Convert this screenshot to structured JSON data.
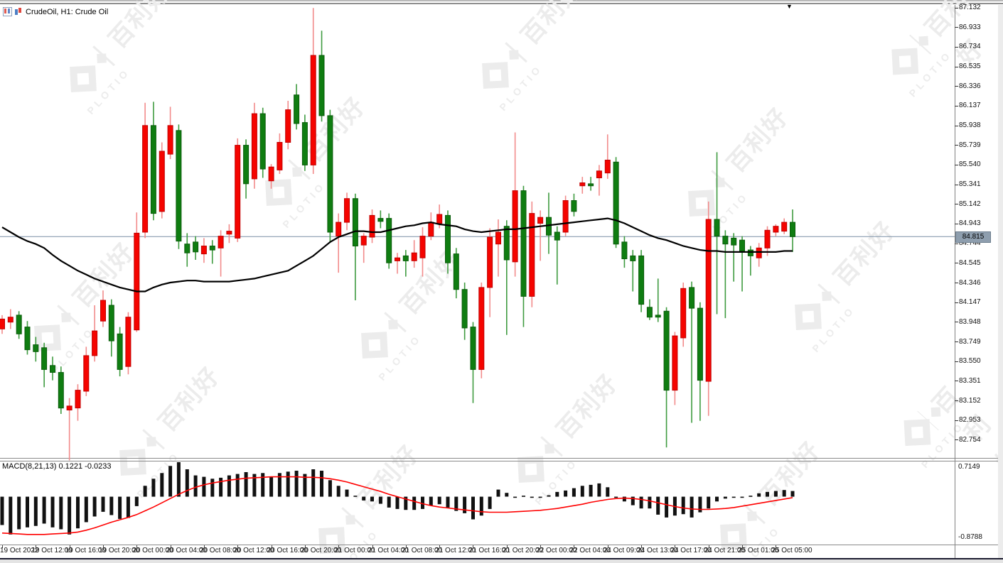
{
  "window": {
    "symbol_label": "CrudeOil, H1:  Crude Oil"
  },
  "watermark": {
    "brand_cn": "百利好",
    "brand_en": "PLOTIO"
  },
  "colors": {
    "bull_body": "#f50400",
    "bull_border": "#c00000",
    "bull_wick": "#f28b8b",
    "bear_body": "#0f7d11",
    "bear_border": "#0a5c0b",
    "bear_wick": "#3f9b40",
    "ma_line": "#000000",
    "macd_signal": "#ff0000",
    "macd_histogram": "#111111",
    "price_line": "#7a8fa5",
    "price_badge_bg": "#8e9eae"
  },
  "chart_data": {
    "type": "candlestick",
    "symbol": "CrudeOil",
    "timeframe": "H1",
    "end_marker": "▼",
    "price_axis": {
      "labels": [
        "87.132",
        "86.933",
        "86.734",
        "86.535",
        "86.336",
        "86.137",
        "85.938",
        "85.739",
        "85.540",
        "85.341",
        "85.142",
        "84.943",
        "84.744",
        "84.545",
        "84.346",
        "84.147",
        "83.948",
        "83.749",
        "83.550",
        "83.351",
        "83.152",
        "82.953",
        "82.754"
      ],
      "current_price": "84.815"
    },
    "macd_axis": {
      "top": "0.7149",
      "bottom": "-0.8788"
    },
    "time_labels": [
      "19 Oct 2022",
      "19 Oct 12:00",
      "19 Oct 16:00",
      "19 Oct 20:00",
      "20 Oct 00:00",
      "20 Oct 04:00",
      "20 Oct 08:00",
      "20 Oct 12:00",
      "20 Oct 16:00",
      "20 Oct 20:00",
      "21 Oct 00:00",
      "21 Oct 04:00",
      "21 Oct 08:00",
      "21 Oct 12:00",
      "21 Oct 16:00",
      "21 Oct 20:00",
      "22 Oct 00:00",
      "22 Oct 04:00",
      "24 Oct 09:00",
      "24 Oct 13:00",
      "24 Oct 17:00",
      "24 Oct 21:00",
      "25 Oct 01:00",
      "25 Oct 05:00"
    ],
    "candles_ohlc": [
      [
        83.88,
        84.02,
        83.83,
        83.98
      ],
      [
        83.95,
        84.08,
        83.88,
        84.0
      ],
      [
        84.02,
        84.06,
        83.78,
        83.83
      ],
      [
        83.9,
        83.96,
        83.62,
        83.67
      ],
      [
        83.72,
        83.8,
        83.55,
        83.65
      ],
      [
        83.69,
        83.74,
        83.29,
        83.47
      ],
      [
        83.51,
        83.6,
        83.36,
        83.44
      ],
      [
        83.44,
        83.5,
        83.02,
        83.08
      ],
      [
        83.06,
        83.18,
        82.55,
        83.1
      ],
      [
        83.08,
        83.32,
        82.95,
        83.26
      ],
      [
        83.25,
        83.7,
        83.2,
        83.61
      ],
      [
        83.61,
        84.12,
        83.55,
        83.86
      ],
      [
        83.96,
        84.27,
        83.9,
        84.17
      ],
      [
        84.12,
        84.18,
        83.6,
        83.76
      ],
      [
        83.83,
        83.9,
        83.4,
        83.47
      ],
      [
        83.5,
        84.05,
        83.42,
        84.0
      ],
      [
        83.87,
        85.06,
        83.85,
        84.85
      ],
      [
        84.86,
        86.17,
        84.8,
        85.94
      ],
      [
        85.94,
        86.18,
        84.98,
        85.05
      ],
      [
        85.07,
        85.77,
        85.0,
        85.68
      ],
      [
        85.65,
        86.13,
        85.6,
        85.94
      ],
      [
        85.89,
        85.95,
        84.69,
        84.77
      ],
      [
        84.74,
        84.85,
        84.51,
        84.65
      ],
      [
        84.76,
        84.82,
        84.58,
        84.66
      ],
      [
        84.64,
        84.8,
        84.55,
        84.72
      ],
      [
        84.72,
        84.78,
        84.54,
        84.68
      ],
      [
        84.7,
        84.88,
        84.41,
        84.82
      ],
      [
        84.84,
        84.94,
        84.75,
        84.87
      ],
      [
        84.8,
        85.81,
        84.76,
        85.74
      ],
      [
        85.74,
        85.8,
        85.2,
        85.35
      ],
      [
        85.4,
        86.17,
        85.3,
        86.06
      ],
      [
        86.06,
        86.12,
        85.41,
        85.5
      ],
      [
        85.38,
        85.55,
        85.3,
        85.52
      ],
      [
        85.49,
        85.86,
        85.45,
        85.77
      ],
      [
        85.77,
        86.19,
        85.7,
        86.1
      ],
      [
        86.25,
        86.36,
        85.9,
        85.96
      ],
      [
        85.97,
        86.05,
        85.48,
        85.54
      ],
      [
        85.54,
        87.13,
        85.45,
        86.65
      ],
      [
        86.65,
        86.9,
        85.98,
        86.04
      ],
      [
        86.04,
        86.1,
        84.75,
        84.86
      ],
      [
        84.82,
        85.05,
        84.45,
        84.96
      ],
      [
        84.96,
        85.26,
        84.88,
        85.2
      ],
      [
        85.2,
        85.25,
        84.17,
        84.72
      ],
      [
        84.73,
        84.85,
        84.55,
        84.82
      ],
      [
        84.81,
        85.09,
        84.75,
        85.03
      ],
      [
        85.0,
        85.08,
        84.9,
        84.97
      ],
      [
        85.0,
        85.05,
        84.49,
        84.55
      ],
      [
        84.57,
        84.65,
        84.44,
        84.6
      ],
      [
        84.62,
        84.68,
        84.41,
        84.57
      ],
      [
        84.57,
        84.78,
        84.5,
        84.65
      ],
      [
        84.6,
        84.91,
        84.41,
        84.82
      ],
      [
        84.82,
        85.06,
        84.78,
        84.96
      ],
      [
        84.95,
        85.14,
        84.9,
        85.04
      ],
      [
        85.03,
        85.08,
        84.44,
        84.55
      ],
      [
        84.64,
        84.7,
        84.19,
        84.28
      ],
      [
        84.28,
        84.35,
        83.77,
        83.89
      ],
      [
        83.9,
        83.95,
        83.13,
        83.47
      ],
      [
        83.47,
        84.35,
        83.38,
        84.3
      ],
      [
        84.3,
        84.9,
        84.0,
        84.81
      ],
      [
        84.74,
        84.99,
        84.41,
        84.86
      ],
      [
        84.92,
        84.98,
        83.82,
        84.58
      ],
      [
        84.56,
        85.87,
        84.41,
        85.28
      ],
      [
        85.28,
        85.33,
        83.9,
        84.21
      ],
      [
        84.21,
        85.17,
        84.1,
        85.05
      ],
      [
        84.95,
        85.08,
        84.57,
        85.01
      ],
      [
        85.01,
        85.26,
        84.64,
        84.83
      ],
      [
        84.86,
        84.92,
        84.33,
        84.78
      ],
      [
        84.86,
        85.23,
        84.82,
        85.18
      ],
      [
        85.18,
        85.25,
        85.02,
        85.07
      ],
      [
        85.33,
        85.42,
        85.25,
        85.36
      ],
      [
        85.35,
        85.42,
        85.28,
        85.33
      ],
      [
        85.41,
        85.54,
        85.23,
        85.48
      ],
      [
        85.46,
        85.85,
        85.4,
        85.59
      ],
      [
        85.57,
        85.62,
        84.7,
        84.74
      ],
      [
        84.76,
        84.82,
        84.5,
        84.59
      ],
      [
        84.62,
        84.68,
        84.26,
        84.57
      ],
      [
        84.62,
        84.68,
        84.05,
        84.13
      ],
      [
        84.1,
        84.18,
        83.97,
        84.0
      ],
      [
        84.02,
        84.39,
        83.95,
        84.0
      ],
      [
        84.06,
        84.1,
        82.68,
        83.26
      ],
      [
        83.26,
        83.85,
        83.11,
        83.81
      ],
      [
        83.79,
        84.35,
        83.7,
        84.29
      ],
      [
        84.3,
        84.36,
        82.93,
        84.09
      ],
      [
        84.09,
        84.15,
        82.95,
        83.36
      ],
      [
        83.35,
        85.17,
        83.0,
        84.99
      ],
      [
        84.99,
        85.67,
        84.03,
        84.82
      ],
      [
        84.82,
        84.88,
        83.99,
        84.74
      ],
      [
        84.8,
        84.85,
        84.36,
        84.73
      ],
      [
        84.78,
        84.82,
        84.26,
        84.67
      ],
      [
        84.68,
        84.72,
        84.42,
        84.62
      ],
      [
        84.6,
        84.75,
        84.51,
        84.7
      ],
      [
        84.7,
        84.92,
        84.62,
        84.88
      ],
      [
        84.86,
        84.94,
        84.82,
        84.92
      ],
      [
        84.87,
        85.0,
        84.84,
        84.96
      ],
      [
        84.96,
        85.09,
        84.66,
        84.815
      ]
    ],
    "ma_values": [
      84.91,
      84.86,
      84.81,
      84.77,
      84.74,
      84.7,
      84.63,
      84.57,
      84.52,
      84.47,
      84.43,
      84.39,
      84.36,
      84.33,
      84.3,
      84.28,
      84.26,
      84.26,
      84.3,
      84.33,
      84.35,
      84.36,
      84.37,
      84.37,
      84.36,
      84.36,
      84.36,
      84.36,
      84.37,
      84.38,
      84.39,
      84.41,
      84.43,
      84.45,
      84.47,
      84.52,
      84.57,
      84.62,
      84.69,
      84.76,
      84.81,
      84.84,
      84.87,
      84.87,
      84.86,
      84.86,
      84.88,
      84.9,
      84.92,
      84.93,
      84.95,
      84.96,
      84.94,
      84.93,
      84.92,
      84.89,
      84.87,
      84.86,
      84.87,
      84.88,
      84.89,
      84.89,
      84.9,
      84.91,
      84.92,
      84.93,
      84.94,
      84.95,
      84.96,
      84.97,
      84.98,
      84.99,
      85.0,
      84.98,
      84.95,
      84.91,
      84.87,
      84.83,
      84.8,
      84.78,
      84.75,
      84.72,
      84.7,
      84.68,
      84.67,
      84.67,
      84.66,
      84.66,
      84.66,
      84.66,
      84.66,
      84.66,
      84.66,
      84.67,
      84.67
    ],
    "macd": {
      "label": "MACD(8,21,13) 0.1221 -0.0233",
      "histogram": [
        -0.6,
        -0.8,
        -0.69,
        -0.65,
        -0.62,
        -0.57,
        -0.65,
        -0.69,
        -0.8,
        -0.67,
        -0.54,
        -0.42,
        -0.32,
        -0.39,
        -0.47,
        -0.45,
        -0.2,
        0.23,
        0.38,
        0.5,
        0.65,
        0.73,
        0.58,
        0.45,
        0.42,
        0.38,
        0.4,
        0.45,
        0.48,
        0.52,
        0.48,
        0.5,
        0.43,
        0.5,
        0.53,
        0.55,
        0.48,
        0.58,
        0.55,
        0.35,
        0.23,
        0.15,
        0.02,
        -0.08,
        -0.1,
        -0.15,
        -0.23,
        -0.26,
        -0.28,
        -0.28,
        -0.26,
        -0.19,
        -0.16,
        -0.23,
        -0.3,
        -0.35,
        -0.48,
        -0.4,
        -0.26,
        0.15,
        0.08,
        0.0,
        0.02,
        0.0,
        -0.02,
        0.03,
        0.1,
        0.13,
        0.18,
        0.23,
        0.25,
        0.28,
        0.2,
        -0.02,
        -0.1,
        -0.18,
        -0.25,
        -0.25,
        -0.38,
        -0.44,
        -0.4,
        -0.37,
        -0.44,
        -0.33,
        -0.25,
        -0.1,
        -0.04,
        -0.02,
        0.0,
        0.02,
        0.07,
        0.1,
        0.12,
        0.14,
        0.12
      ],
      "signal": [
        -0.77,
        -0.78,
        -0.79,
        -0.8,
        -0.8,
        -0.8,
        -0.79,
        -0.78,
        -0.77,
        -0.75,
        -0.71,
        -0.66,
        -0.6,
        -0.54,
        -0.49,
        -0.44,
        -0.38,
        -0.3,
        -0.22,
        -0.13,
        -0.04,
        0.05,
        0.13,
        0.2,
        0.25,
        0.29,
        0.32,
        0.35,
        0.37,
        0.39,
        0.4,
        0.41,
        0.42,
        0.42,
        0.42,
        0.42,
        0.41,
        0.41,
        0.4,
        0.38,
        0.35,
        0.31,
        0.26,
        0.21,
        0.16,
        0.11,
        0.05,
        0.0,
        -0.05,
        -0.1,
        -0.15,
        -0.19,
        -0.22,
        -0.24,
        -0.26,
        -0.28,
        -0.3,
        -0.32,
        -0.33,
        -0.33,
        -0.33,
        -0.32,
        -0.31,
        -0.3,
        -0.29,
        -0.27,
        -0.25,
        -0.22,
        -0.19,
        -0.16,
        -0.12,
        -0.09,
        -0.06,
        -0.04,
        -0.03,
        -0.04,
        -0.06,
        -0.09,
        -0.13,
        -0.17,
        -0.21,
        -0.24,
        -0.26,
        -0.27,
        -0.27,
        -0.26,
        -0.25,
        -0.23,
        -0.2,
        -0.17,
        -0.14,
        -0.11,
        -0.08,
        -0.05,
        -0.02
      ]
    }
  }
}
